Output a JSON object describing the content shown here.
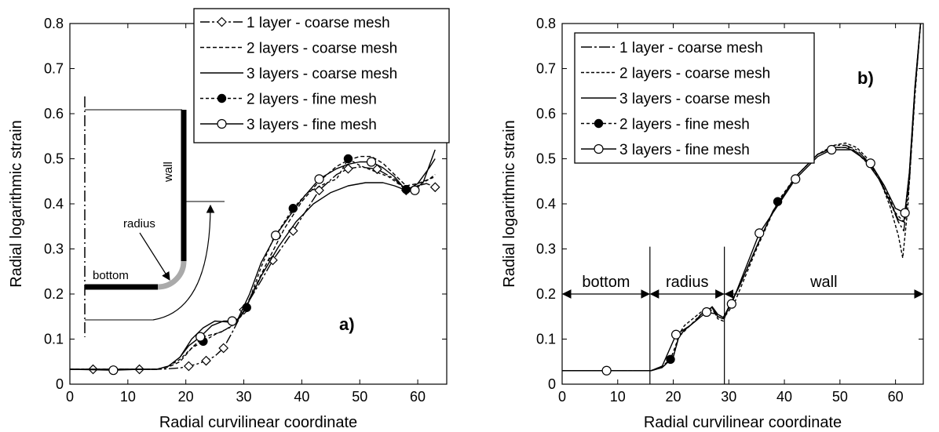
{
  "chart_data": [
    {
      "type": "line",
      "panel_label": "a)",
      "xlabel": "Radial curvilinear coordinate",
      "ylabel": "Radial logarithmic strain",
      "xlim": [
        0,
        65
      ],
      "ylim": [
        0,
        0.8
      ],
      "xticks": [
        "0",
        "10",
        "20",
        "30",
        "40",
        "50",
        "60"
      ],
      "yticks": [
        "0",
        "0.1",
        "0.2",
        "0.3",
        "0.4",
        "0.5",
        "0.6",
        "0.7",
        "0.8"
      ],
      "legend_position": "top-right",
      "inset_labels": {
        "wall": "wall",
        "radius": "radius",
        "bottom": "bottom"
      },
      "series": [
        {
          "name": "1 layer - coarse mesh",
          "dash": "12 3 3 3",
          "marker": "diamond",
          "x": [
            0,
            4,
            8,
            12,
            15,
            17,
            19,
            20.5,
            22,
            23.5,
            25,
            26.5,
            28,
            30,
            33,
            35,
            38,
            40,
            43,
            46,
            48,
            50,
            53,
            56,
            58,
            60,
            61.5,
            63
          ],
          "y": [
            0.033,
            0.033,
            0.033,
            0.033,
            0.033,
            0.034,
            0.036,
            0.04,
            0.045,
            0.052,
            0.062,
            0.08,
            0.115,
            0.165,
            0.23,
            0.275,
            0.33,
            0.37,
            0.43,
            0.465,
            0.478,
            0.482,
            0.477,
            0.455,
            0.43,
            0.44,
            0.445,
            0.437
          ],
          "markers_x": [
            4,
            12,
            20.5,
            23.5,
            26.5,
            30,
            35,
            38.5,
            43,
            48,
            53,
            58,
            63
          ]
        },
        {
          "name": "2 layers - coarse mesh",
          "dash": "5 3",
          "marker": "none",
          "x": [
            0,
            10,
            15,
            17,
            19,
            21,
            23,
            24.5,
            26,
            28,
            29.5,
            31,
            34,
            37,
            40,
            43,
            46,
            48,
            50,
            52,
            54,
            56,
            58,
            60,
            62,
            63
          ],
          "y": [
            0.033,
            0.033,
            0.033,
            0.038,
            0.05,
            0.08,
            0.105,
            0.11,
            0.115,
            0.13,
            0.15,
            0.19,
            0.27,
            0.345,
            0.405,
            0.45,
            0.483,
            0.497,
            0.505,
            0.505,
            0.49,
            0.465,
            0.44,
            0.445,
            0.455,
            0.465
          ]
        },
        {
          "name": "3 layers - coarse mesh",
          "dash": "none",
          "marker": "none",
          "x": [
            0,
            10,
            15,
            17,
            19,
            21,
            23,
            25,
            27,
            28.5,
            30,
            33,
            36,
            39,
            42,
            45,
            48,
            51,
            54,
            56,
            58,
            60,
            62,
            63
          ],
          "y": [
            0.033,
            0.033,
            0.033,
            0.04,
            0.06,
            0.1,
            0.125,
            0.14,
            0.138,
            0.135,
            0.16,
            0.24,
            0.305,
            0.36,
            0.4,
            0.425,
            0.44,
            0.447,
            0.447,
            0.44,
            0.43,
            0.445,
            0.48,
            0.5
          ]
        },
        {
          "name": "2 layers - fine mesh",
          "dash": "4 3",
          "marker": "filled-circle",
          "x": [
            0,
            10,
            15,
            17,
            19,
            21,
            23,
            25,
            27.5,
            29,
            30.5,
            33,
            35,
            38.5,
            41,
            44,
            46,
            48,
            50,
            53,
            55,
            58,
            60,
            62,
            63
          ],
          "y": [
            0.033,
            0.033,
            0.033,
            0.04,
            0.055,
            0.08,
            0.095,
            0.11,
            0.125,
            0.145,
            0.17,
            0.26,
            0.32,
            0.39,
            0.425,
            0.445,
            0.455,
            0.5,
            0.485,
            0.47,
            0.46,
            0.432,
            0.44,
            0.455,
            0.46
          ],
          "markers_x": [
            23,
            30.5,
            38.5,
            48,
            58
          ]
        },
        {
          "name": "3 layers - fine mesh",
          "dash": "none",
          "marker": "open-circle",
          "x": [
            0,
            7.5,
            12,
            15,
            17,
            19,
            20.5,
            22.5,
            24.5,
            26.5,
            28,
            29,
            31,
            33,
            35.5,
            38,
            40,
            43,
            46,
            48,
            50,
            52,
            54,
            56,
            58,
            59.5,
            61,
            63
          ],
          "y": [
            0.033,
            0.031,
            0.033,
            0.033,
            0.04,
            0.06,
            0.085,
            0.105,
            0.13,
            0.14,
            0.14,
            0.145,
            0.2,
            0.27,
            0.33,
            0.375,
            0.41,
            0.455,
            0.478,
            0.488,
            0.493,
            0.493,
            0.48,
            0.46,
            0.43,
            0.43,
            0.45,
            0.52
          ],
          "markers_x": [
            7.5,
            22.5,
            28,
            35.5,
            43,
            52,
            59.5
          ]
        }
      ]
    },
    {
      "type": "line",
      "panel_label": "b)",
      "xlabel": "Radial curvilinear coordinate",
      "ylabel": "Radial logarithmic strain",
      "xlim": [
        0,
        65
      ],
      "ylim": [
        0,
        0.8
      ],
      "xticks": [
        "0",
        "10",
        "20",
        "30",
        "40",
        "50",
        "60"
      ],
      "yticks": [
        "0",
        "0.1",
        "0.2",
        "0.3",
        "0.4",
        "0.5",
        "0.6",
        "0.7",
        "0.8"
      ],
      "legend_position": "top-left",
      "regions": [
        {
          "label": "bottom",
          "from": 0,
          "to": 15.8
        },
        {
          "label": "radius",
          "from": 15.8,
          "to": 29.2
        },
        {
          "label": "wall",
          "from": 29.2,
          "to": 65
        }
      ],
      "region_arrow_y": 0.2,
      "series": [
        {
          "name": "1 layer - coarse mesh",
          "dash": "14 3 3 3",
          "marker": "none",
          "x": [
            0,
            15,
            16,
            18,
            20,
            21,
            22,
            23,
            24,
            25,
            26,
            27,
            28,
            29,
            30,
            32,
            35,
            38,
            42,
            46,
            49,
            51,
            53,
            55,
            57,
            59,
            60.5,
            61.5,
            62.5,
            63.5,
            64.5
          ],
          "y": [
            0.03,
            0.03,
            0.03,
            0.037,
            0.06,
            0.105,
            0.12,
            0.13,
            0.14,
            0.155,
            0.16,
            0.172,
            0.155,
            0.148,
            0.17,
            0.22,
            0.305,
            0.385,
            0.46,
            0.51,
            0.53,
            0.53,
            0.52,
            0.495,
            0.46,
            0.405,
            0.36,
            0.34,
            0.45,
            0.65,
            0.8
          ]
        },
        {
          "name": "2 layers - coarse mesh",
          "dash": "4 2.5",
          "marker": "none",
          "x": [
            0,
            15,
            16,
            18,
            20,
            21,
            22,
            23,
            24,
            25,
            26,
            27,
            28,
            29,
            30,
            32,
            35,
            38,
            42,
            46,
            49,
            51,
            53,
            55,
            57,
            59,
            60.5,
            61.3,
            62.2,
            63.3,
            64.5
          ],
          "y": [
            0.03,
            0.03,
            0.03,
            0.037,
            0.06,
            0.11,
            0.13,
            0.14,
            0.15,
            0.16,
            0.162,
            0.17,
            0.145,
            0.14,
            0.17,
            0.22,
            0.305,
            0.385,
            0.46,
            0.51,
            0.53,
            0.535,
            0.525,
            0.5,
            0.46,
            0.395,
            0.33,
            0.28,
            0.39,
            0.62,
            0.8
          ]
        },
        {
          "name": "3 layers - coarse mesh",
          "dash": "none",
          "marker": "none",
          "x": [
            0,
            15,
            16,
            18,
            20,
            21,
            22,
            23,
            24,
            25,
            26,
            27,
            28,
            29,
            30,
            32,
            35,
            38,
            42,
            46,
            49,
            51,
            53,
            55,
            57,
            59,
            60.5,
            61.5,
            62.5,
            63.5,
            64.5
          ],
          "y": [
            0.03,
            0.03,
            0.03,
            0.037,
            0.06,
            0.105,
            0.12,
            0.13,
            0.14,
            0.155,
            0.165,
            0.17,
            0.15,
            0.145,
            0.172,
            0.22,
            0.305,
            0.385,
            0.46,
            0.51,
            0.525,
            0.525,
            0.515,
            0.49,
            0.455,
            0.405,
            0.365,
            0.36,
            0.47,
            0.66,
            0.8
          ]
        },
        {
          "name": "2 layers - fine mesh",
          "dash": "4 3",
          "marker": "filled-circle",
          "x": [
            0,
            15,
            16,
            18,
            19.5,
            21,
            23,
            25,
            27,
            28,
            29,
            31,
            35,
            38.8,
            42,
            46,
            49,
            52,
            55,
            58,
            60,
            61.5,
            62.5,
            63.5,
            64.5
          ],
          "y": [
            0.03,
            0.03,
            0.03,
            0.04,
            0.055,
            0.105,
            0.13,
            0.155,
            0.165,
            0.15,
            0.145,
            0.18,
            0.3,
            0.405,
            0.46,
            0.51,
            0.525,
            0.525,
            0.49,
            0.44,
            0.38,
            0.36,
            0.45,
            0.64,
            0.8
          ],
          "markers_x": [
            19.5,
            38.8
          ]
        },
        {
          "name": "3 layers - fine mesh",
          "dash": "none",
          "marker": "open-circle",
          "x": [
            0,
            8,
            15,
            16,
            18,
            20.5,
            23,
            26,
            28,
            29,
            30.5,
            35.5,
            42,
            46,
            48.5,
            52,
            55.5,
            58,
            60,
            61.7,
            62.5,
            63.5,
            64.5
          ],
          "y": [
            0.03,
            0.03,
            0.03,
            0.03,
            0.04,
            0.11,
            0.13,
            0.16,
            0.155,
            0.148,
            0.178,
            0.335,
            0.455,
            0.505,
            0.52,
            0.52,
            0.49,
            0.44,
            0.39,
            0.38,
            0.47,
            0.66,
            0.8
          ],
          "markers_x": [
            8,
            20.5,
            26,
            30.5,
            35.5,
            42,
            48.5,
            55.5,
            61.7
          ]
        }
      ]
    }
  ]
}
